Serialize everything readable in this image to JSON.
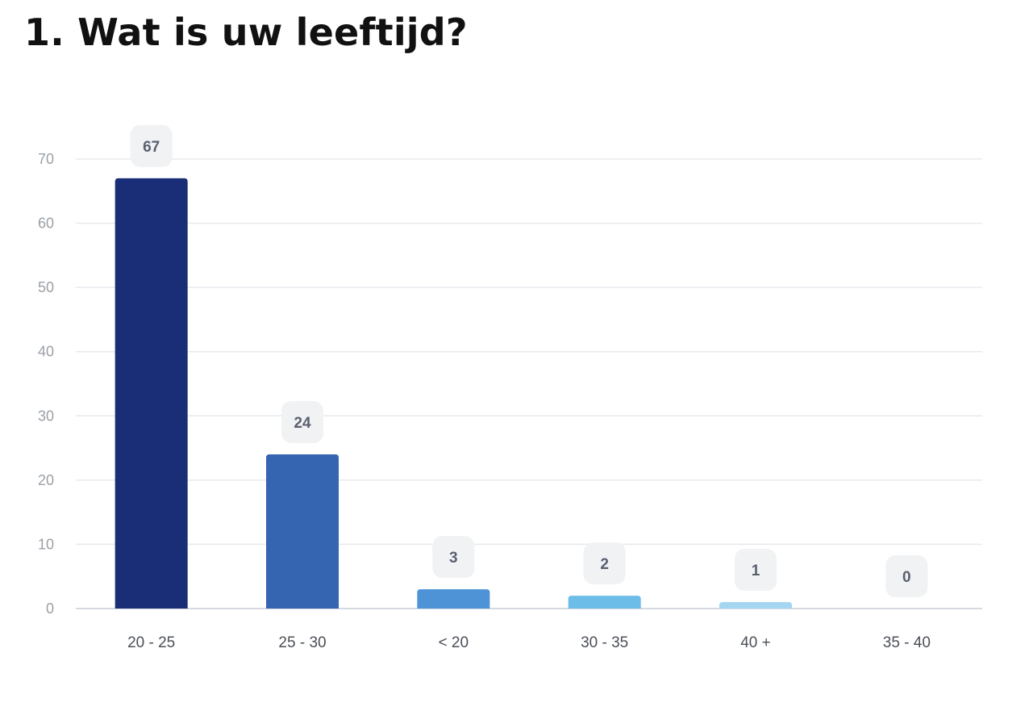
{
  "chart_data": {
    "type": "bar",
    "title": "1. Wat is uw leeftijd?",
    "xlabel": "",
    "ylabel": "",
    "categories": [
      "20 - 25",
      "25 - 30",
      "< 20",
      "30 - 35",
      "40 +",
      "35 - 40"
    ],
    "values": [
      67,
      24,
      3,
      2,
      1,
      0
    ],
    "ylim": [
      0,
      70
    ],
    "yticks": [
      0,
      10,
      20,
      30,
      40,
      50,
      60,
      70
    ],
    "data_labels": [
      "67",
      "24",
      "3",
      "2",
      "1",
      "0"
    ],
    "bar_colors": [
      "#1a2e78",
      "#3564b0",
      "#4d93d6",
      "#6cbde8",
      "#a4d6f1",
      "#cfe8f6"
    ],
    "grid": true,
    "legend": "none",
    "colors": {
      "gridline": "#e8eaed",
      "baseline": "#d6dae0",
      "label_badge": "#f1f2f3"
    }
  }
}
